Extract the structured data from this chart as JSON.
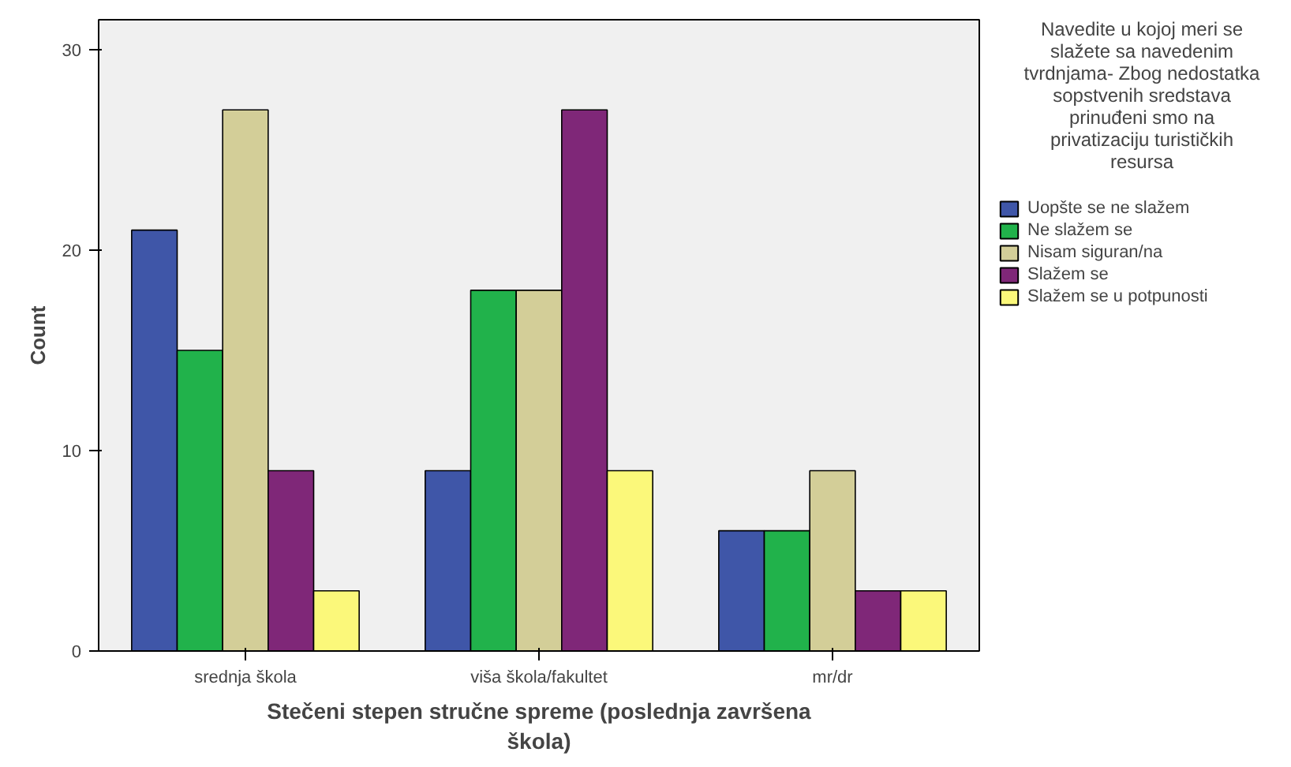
{
  "chart_data": {
    "type": "bar",
    "xlabel": "Stečeni stepen stručne spreme (poslednja završena škola)",
    "ylabel": "Count",
    "legend_title": "Navedite u kojoj meri se slažete sa navedenim tvrdnjama- Zbog nedostatka sopstvenih sredstava prinuđeni smo na privatizaciju turističkih resursa",
    "categories": [
      "srednja škola",
      "viša škola/fakultet",
      "mr/dr"
    ],
    "series": [
      {
        "name": "Uopšte se ne slažem",
        "color": "#3f56a8",
        "values": [
          21,
          9,
          6
        ]
      },
      {
        "name": "Ne slažem se",
        "color": "#21b24b",
        "values": [
          15,
          18,
          6
        ]
      },
      {
        "name": "Nisam siguran/na",
        "color": "#d3ce98",
        "values": [
          27,
          18,
          9
        ]
      },
      {
        "name": "Slažem se",
        "color": "#7f2778",
        "values": [
          9,
          27,
          3
        ]
      },
      {
        "name": "Slažem se u potpunosti",
        "color": "#fbf87a",
        "values": [
          3,
          9,
          3
        ]
      }
    ],
    "ylim": [
      0,
      31.5
    ],
    "yticks": [
      0,
      10,
      20,
      30
    ],
    "grid": false,
    "legend": "right"
  }
}
